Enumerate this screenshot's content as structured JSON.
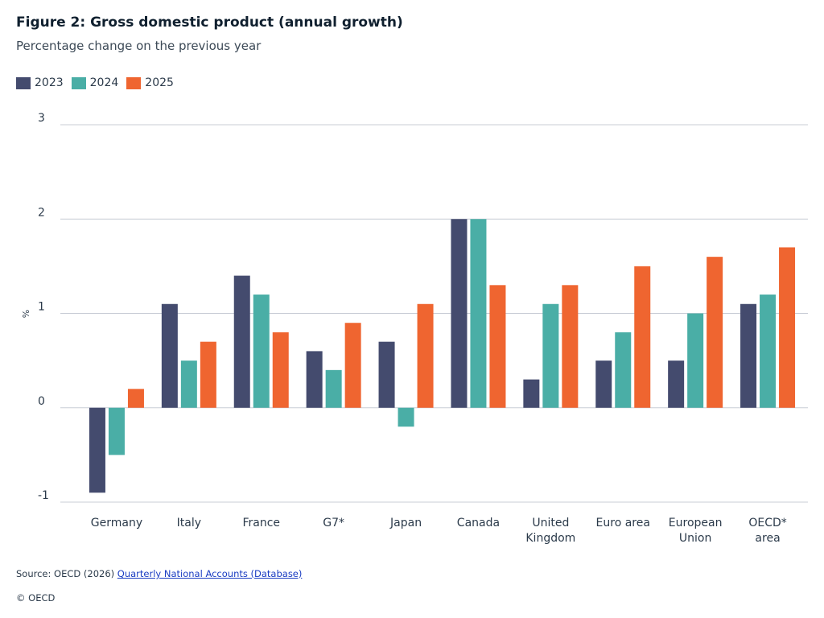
{
  "header": {
    "title": "Figure 2: Gross domestic product (annual growth)",
    "subtitle": "Percentage change on the previous year"
  },
  "legend": [
    {
      "label": "2023",
      "color": "#444b6e"
    },
    {
      "label": "2024",
      "color": "#4aaea6"
    },
    {
      "label": "2025",
      "color": "#ef6530"
    }
  ],
  "chart_data": {
    "type": "bar",
    "title": "Figure 2: Gross domestic product (annual growth)",
    "subtitle": "Percentage change on the previous year",
    "xlabel": "",
    "ylabel": "%",
    "ylim": [
      -1,
      3
    ],
    "yticks": [
      "3",
      "2",
      "1",
      "0",
      "-1"
    ],
    "grid": true,
    "legend_position": "top-left",
    "categories": [
      [
        "Germany"
      ],
      [
        "Italy"
      ],
      [
        "France"
      ],
      [
        "G7*"
      ],
      [
        "Japan"
      ],
      [
        "Canada"
      ],
      [
        "United",
        "Kingdom"
      ],
      [
        "Euro area"
      ],
      [
        "European",
        "Union"
      ],
      [
        "OECD*",
        "area"
      ]
    ],
    "series": [
      {
        "name": "2023",
        "color": "#444b6e",
        "values": [
          -0.9,
          1.1,
          1.4,
          0.6,
          0.7,
          2.0,
          0.3,
          0.5,
          0.5,
          1.1
        ]
      },
      {
        "name": "2024",
        "color": "#4aaea6",
        "values": [
          -0.5,
          0.5,
          1.2,
          0.4,
          -0.2,
          2.0,
          1.1,
          0.8,
          1.0,
          1.2
        ]
      },
      {
        "name": "2025",
        "color": "#ef6530",
        "values": [
          0.2,
          0.7,
          0.8,
          0.9,
          1.1,
          1.3,
          1.3,
          1.5,
          1.6,
          1.7
        ]
      }
    ]
  },
  "footer": {
    "source_prefix": "Source: OECD (2026) ",
    "source_link": "Quarterly National Accounts (Database)",
    "copyright": "© OECD"
  }
}
